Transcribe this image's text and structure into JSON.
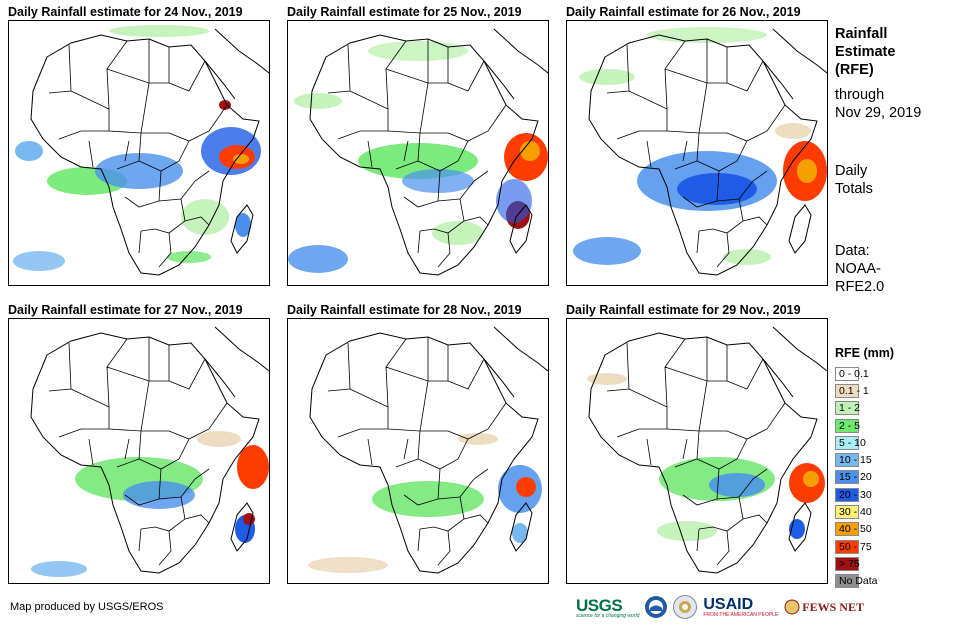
{
  "panels": [
    {
      "title": "Daily Rainfall estimate for 24 Nov., 2019"
    },
    {
      "title": "Daily Rainfall estimate for 25 Nov., 2019"
    },
    {
      "title": "Daily Rainfall estimate for 26 Nov., 2019"
    },
    {
      "title": "Daily Rainfall estimate for 27 Nov., 2019"
    },
    {
      "title": "Daily Rainfall estimate for 28 Nov., 2019"
    },
    {
      "title": "Daily Rainfall estimate for 29 Nov., 2019"
    }
  ],
  "sidebar": {
    "title_line1": "Rainfall",
    "title_line2": "Estimate",
    "title_line3": "(RFE)",
    "period_line1": "through",
    "period_line2": "Nov 29, 2019",
    "totals_line1": "Daily",
    "totals_line2": "Totals",
    "source_line1": "Data:",
    "source_line2": "NOAA-",
    "source_line3": "RFE2.0"
  },
  "legend": {
    "title": "RFE (mm)",
    "items": [
      {
        "label": "0 - 0.1",
        "color": "#ffffff"
      },
      {
        "label": "0.1 - 1",
        "color": "#eedcc0"
      },
      {
        "label": "1 - 2",
        "color": "#bff2b4"
      },
      {
        "label": "2 - 5",
        "color": "#6ee86e"
      },
      {
        "label": "5 - 10",
        "color": "#a8eef6"
      },
      {
        "label": "10 - 15",
        "color": "#78b8f0"
      },
      {
        "label": "15 - 20",
        "color": "#4a90ec"
      },
      {
        "label": "20 - 30",
        "color": "#1e5ce6"
      },
      {
        "label": "30 - 40",
        "color": "#fff07a"
      },
      {
        "label": "40 - 50",
        "color": "#f5a000"
      },
      {
        "label": "50 - 75",
        "color": "#ff3c00"
      },
      {
        "label": "> 75",
        "color": "#a01010"
      },
      {
        "label": "No Data",
        "color": "#8e8e8e"
      }
    ]
  },
  "footer": {
    "credit": "Map produced by USGS/EROS",
    "logo_usgs": "USGS",
    "logo_usgs_tagline": "science for a changing world",
    "logo_usaid": "USAID",
    "logo_usaid_tagline": "FROM THE AMERICAN PEOPLE",
    "logo_fews": "FEWS NET"
  }
}
